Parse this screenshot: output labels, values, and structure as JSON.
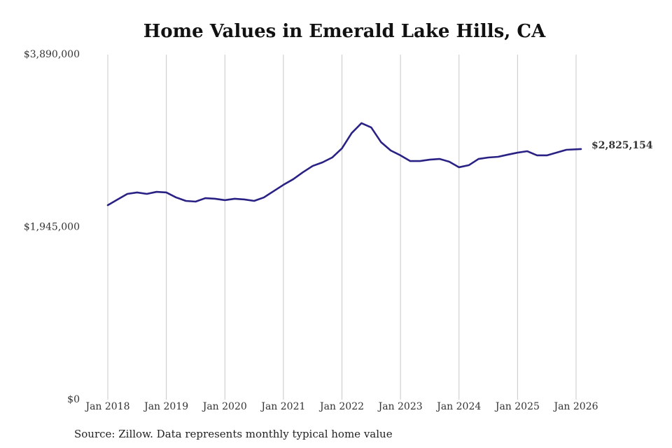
{
  "chart_data": {
    "type": "line",
    "title": "Home Values in Emerald Lake Hills, CA",
    "source": "Source: Zillow. Data represents monthly typical home value",
    "x": [
      "Jan 2018",
      "Mar 2018",
      "May 2018",
      "Jul 2018",
      "Sep 2018",
      "Nov 2018",
      "Jan 2019",
      "Mar 2019",
      "May 2019",
      "Jul 2019",
      "Sep 2019",
      "Nov 2019",
      "Jan 2020",
      "Mar 2020",
      "May 2020",
      "Jul 2020",
      "Sep 2020",
      "Nov 2020",
      "Jan 2021",
      "Mar 2021",
      "May 2021",
      "Jul 2021",
      "Sep 2021",
      "Nov 2021",
      "Jan 2022",
      "Mar 2022",
      "May 2022",
      "Jul 2022",
      "Sep 2022",
      "Nov 2022",
      "Jan 2023",
      "Mar 2023",
      "May 2023",
      "Jul 2023",
      "Sep 2023",
      "Nov 2023",
      "Jan 2024",
      "Mar 2024",
      "May 2024",
      "Jul 2024",
      "Sep 2024",
      "Nov 2024",
      "Jan 2025",
      "Mar 2025",
      "May 2025",
      "Jul 2025",
      "Sep 2025",
      "Nov 2025",
      "Feb 2026"
    ],
    "values": [
      2193000,
      2257000,
      2320000,
      2336000,
      2320000,
      2343000,
      2336000,
      2280000,
      2241000,
      2233000,
      2272000,
      2265000,
      2249000,
      2265000,
      2257000,
      2241000,
      2280000,
      2351000,
      2422000,
      2485000,
      2564000,
      2635000,
      2675000,
      2730000,
      2833000,
      3006000,
      3117000,
      3069000,
      2904000,
      2809000,
      2754000,
      2690000,
      2690000,
      2706000,
      2714000,
      2683000,
      2620000,
      2643000,
      2714000,
      2730000,
      2738000,
      2762000,
      2785000,
      2801000,
      2754000,
      2754000,
      2785000,
      2817000,
      2825154
    ],
    "value_labels": [
      null,
      null,
      null,
      null,
      null,
      null,
      null,
      null,
      null,
      null,
      null,
      null,
      null,
      null,
      null,
      null,
      null,
      null,
      null,
      null,
      null,
      null,
      null,
      null,
      null,
      null,
      null,
      null,
      null,
      null,
      null,
      null,
      null,
      null,
      null,
      null,
      null,
      null,
      null,
      null,
      null,
      null,
      null,
      null,
      null,
      null,
      null,
      null,
      "$2,825,154"
    ],
    "color": "#2a2185",
    "ylim": [
      0,
      3890000
    ],
    "yticks": [
      {
        "value": 0,
        "label": "$0"
      },
      {
        "value": 1945000,
        "label": "$1,945,000"
      },
      {
        "value": 3890000,
        "label": "$3,890,000"
      }
    ],
    "xticks": [
      "Jan 2018",
      "Jan 2019",
      "Jan 2020",
      "Jan 2021",
      "Jan 2022",
      "Jan 2023",
      "Jan 2024",
      "Jan 2025",
      "Jan 2026"
    ],
    "grid": true
  }
}
